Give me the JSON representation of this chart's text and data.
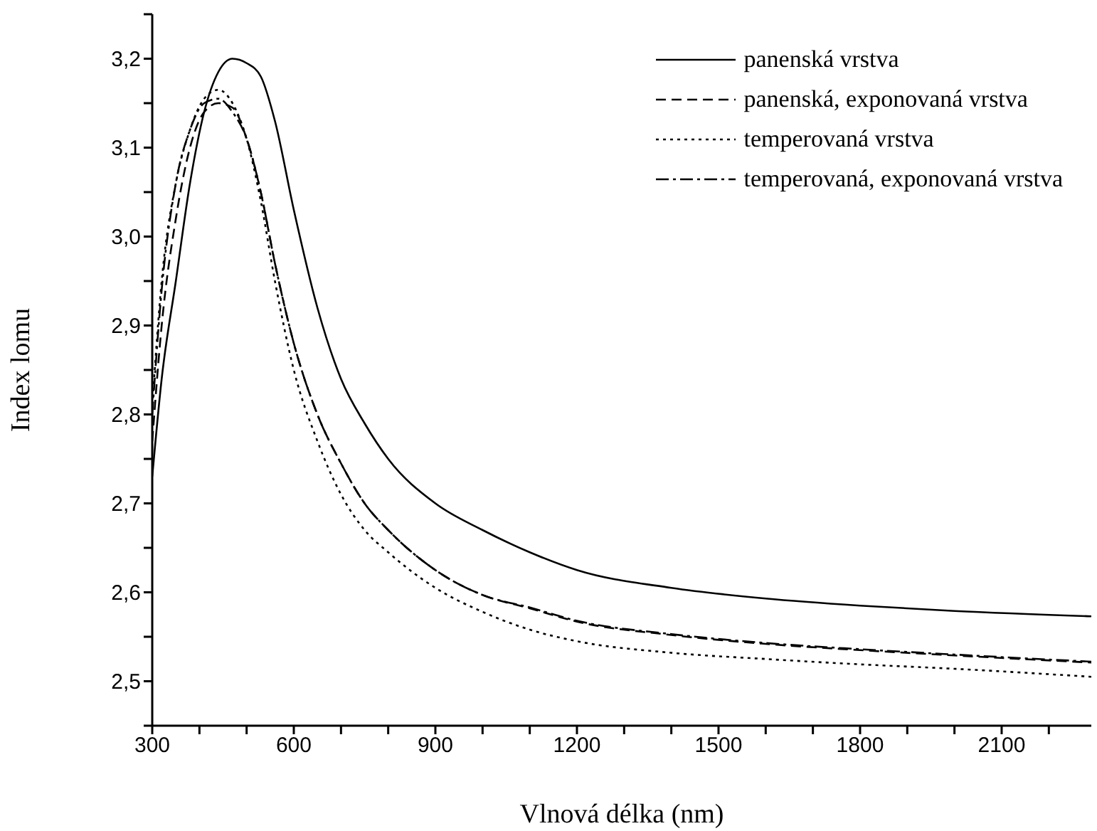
{
  "chart_data": {
    "type": "line",
    "xlabel": "Vlnová délka (nm)",
    "ylabel": "Index lomu",
    "x": [
      300,
      320,
      350,
      380,
      410,
      440,
      470,
      500,
      530,
      560,
      600,
      650,
      700,
      750,
      800,
      900,
      1000,
      1100,
      1200,
      1400,
      1600,
      1800,
      2000,
      2290
    ],
    "series": [
      {
        "name": "panenská vrstva",
        "color": "#000000",
        "line_style": "solid",
        "values": [
          2.73,
          2.84,
          2.95,
          3.06,
          3.14,
          3.185,
          3.2,
          3.195,
          3.18,
          3.13,
          3.03,
          2.92,
          2.84,
          2.79,
          2.75,
          2.7,
          2.67,
          2.645,
          2.625,
          2.605,
          2.593,
          2.585,
          2.579,
          2.573
        ]
      },
      {
        "name": "panenská, exponovaná vrstva",
        "color": "#000000",
        "line_style": "dashed",
        "values": [
          2.77,
          2.9,
          3.02,
          3.1,
          3.14,
          3.15,
          3.145,
          3.11,
          3.05,
          2.97,
          2.88,
          2.8,
          2.745,
          2.7,
          2.67,
          2.625,
          2.597,
          2.582,
          2.567,
          2.552,
          2.542,
          2.535,
          2.529,
          2.521
        ]
      },
      {
        "name": "temperovaná vrstva",
        "color": "#000000",
        "line_style": "dotted",
        "values": [
          2.81,
          2.95,
          3.06,
          3.12,
          3.155,
          3.165,
          3.15,
          3.11,
          3.04,
          2.95,
          2.85,
          2.77,
          2.71,
          2.67,
          2.645,
          2.605,
          2.578,
          2.558,
          2.545,
          2.532,
          2.525,
          2.519,
          2.514,
          2.505
        ]
      },
      {
        "name": "temperovaná, exponovaná vrstva",
        "color": "#000000",
        "line_style": "dashdot",
        "values": [
          2.8,
          2.94,
          3.06,
          3.12,
          3.15,
          3.155,
          3.14,
          3.11,
          3.05,
          2.97,
          2.88,
          2.8,
          2.745,
          2.7,
          2.67,
          2.625,
          2.597,
          2.583,
          2.568,
          2.553,
          2.543,
          2.536,
          2.53,
          2.522
        ]
      }
    ],
    "xlim": [
      300,
      2290
    ],
    "xticks": [
      300,
      {
        "value": 400,
        "label": null
      },
      {
        "value": 500,
        "label": null
      },
      600,
      {
        "value": 700,
        "label": null
      },
      {
        "value": 800,
        "label": null
      },
      900,
      {
        "value": 1000,
        "label": null
      },
      {
        "value": 1100,
        "label": null
      },
      1200,
      {
        "value": 1300,
        "label": null
      },
      {
        "value": 1400,
        "label": null
      },
      1500,
      {
        "value": 1600,
        "label": null
      },
      {
        "value": 1700,
        "label": null
      },
      1800,
      {
        "value": 1900,
        "label": null
      },
      {
        "value": 2000,
        "label": null
      },
      2100,
      {
        "value": 2200,
        "label": null
      }
    ],
    "ylim": [
      2.45,
      3.25
    ],
    "yticks": [
      {
        "value": 2.45,
        "label": null
      },
      {
        "value": 2.5,
        "label": "2,5"
      },
      {
        "value": 2.55,
        "label": null
      },
      {
        "value": 2.6,
        "label": "2,6"
      },
      {
        "value": 2.65,
        "label": null
      },
      {
        "value": 2.7,
        "label": "2,7"
      },
      {
        "value": 2.75,
        "label": null
      },
      {
        "value": 2.8,
        "label": "2,8"
      },
      {
        "value": 2.85,
        "label": null
      },
      {
        "value": 2.9,
        "label": "2,9"
      },
      {
        "value": 2.95,
        "label": null
      },
      {
        "value": 3.0,
        "label": "3,0"
      },
      {
        "value": 3.05,
        "label": null
      },
      {
        "value": 3.1,
        "label": "3,1"
      },
      {
        "value": 3.15,
        "label": null
      },
      {
        "value": 3.2,
        "label": "3,2"
      },
      {
        "value": 3.25,
        "label": null
      }
    ],
    "grid": false,
    "legend": "top right",
    "marker": "none"
  }
}
